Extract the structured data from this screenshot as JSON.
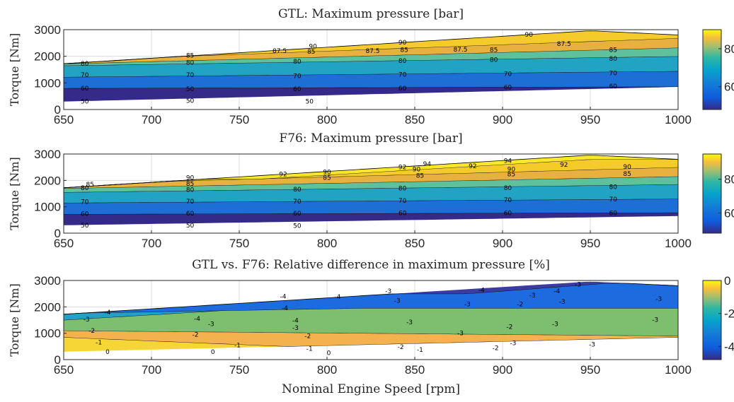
{
  "chart_data": [
    {
      "type": "contour",
      "title": "GTL: Maximum pressure [bar]",
      "ylabel": "Torque [Nm]",
      "xlim": [
        650,
        1000
      ],
      "ylim": [
        0,
        3000
      ],
      "x_ticks": [
        "650",
        "700",
        "750",
        "800",
        "850",
        "900",
        "950",
        "1000"
      ],
      "y_ticks": [
        "0",
        "1000",
        "2000",
        "3000"
      ],
      "colorbar": {
        "range": [
          48,
          90
        ],
        "ticks": [
          "60",
          "80"
        ]
      },
      "domain": {
        "lower_torque": [
          [
            650,
            300
          ],
          [
            1000,
            850
          ]
        ],
        "upper_torque": [
          [
            650,
            1720
          ],
          [
            950,
            2960
          ],
          [
            1000,
            2800
          ]
        ]
      },
      "levels": [
        {
          "value": 50,
          "label": "50",
          "color": "#352a87",
          "boundary": [
            [
              650,
              300
            ],
            [
              1000,
              850
            ]
          ]
        },
        {
          "value": 60,
          "label": "60",
          "color": "#1d6fd6",
          "boundary": [
            [
              650,
              800
            ],
            [
              1000,
              860
            ]
          ]
        },
        {
          "value": 70,
          "label": "70",
          "color": "#21a3c4",
          "boundary": [
            [
              650,
              1220
            ],
            [
              1000,
              1440
            ]
          ]
        },
        {
          "value": 80,
          "label": "80",
          "color": "#5fc09c",
          "boundary": [
            [
              650,
              1650
            ],
            [
              1000,
              2000
            ]
          ]
        },
        {
          "value": 85,
          "label": "85",
          "color": "#e8b03e",
          "boundary": [
            [
              650,
              1720
            ],
            [
              1000,
              2320
            ]
          ]
        },
        {
          "value": 87.5,
          "label": "87.5",
          "color": "#f5cb2c",
          "boundary": [
            [
              700,
              1960
            ],
            [
              1000,
              2680
            ]
          ]
        },
        {
          "value": 90,
          "label": "90",
          "color": "#f9e72a",
          "boundary": [
            [
              790,
              2400
            ],
            [
              950,
              2980
            ]
          ]
        }
      ],
      "contour_labels": [
        {
          "text": "80",
          "x": 662,
          "y": 1720
        },
        {
          "text": "85",
          "x": 722,
          "y": 2030
        },
        {
          "text": "87.5",
          "x": 773,
          "y": 2200
        },
        {
          "text": "90",
          "x": 792,
          "y": 2380
        },
        {
          "text": "85",
          "x": 791,
          "y": 2180
        },
        {
          "text": "87.5",
          "x": 826,
          "y": 2200
        },
        {
          "text": "90",
          "x": 843,
          "y": 2520
        },
        {
          "text": "85",
          "x": 844,
          "y": 2240
        },
        {
          "text": "87.5",
          "x": 876,
          "y": 2260
        },
        {
          "text": "90",
          "x": 915,
          "y": 2820
        },
        {
          "text": "87.5",
          "x": 935,
          "y": 2470
        },
        {
          "text": "85",
          "x": 895,
          "y": 2240
        },
        {
          "text": "85",
          "x": 963,
          "y": 2250
        },
        {
          "text": "80",
          "x": 722,
          "y": 1770
        },
        {
          "text": "80",
          "x": 783,
          "y": 1800
        },
        {
          "text": "80",
          "x": 843,
          "y": 1830
        },
        {
          "text": "80",
          "x": 895,
          "y": 1870
        },
        {
          "text": "80",
          "x": 963,
          "y": 1910
        },
        {
          "text": "70",
          "x": 662,
          "y": 1300
        },
        {
          "text": "70",
          "x": 722,
          "y": 1300
        },
        {
          "text": "70",
          "x": 783,
          "y": 1260
        },
        {
          "text": "70",
          "x": 843,
          "y": 1310
        },
        {
          "text": "70",
          "x": 903,
          "y": 1340
        },
        {
          "text": "70",
          "x": 963,
          "y": 1370
        },
        {
          "text": "60",
          "x": 662,
          "y": 800
        },
        {
          "text": "50",
          "x": 722,
          "y": 770
        },
        {
          "text": "60",
          "x": 783,
          "y": 770
        },
        {
          "text": "60",
          "x": 843,
          "y": 800
        },
        {
          "text": "60",
          "x": 903,
          "y": 840
        },
        {
          "text": "60",
          "x": 963,
          "y": 870
        },
        {
          "text": "50",
          "x": 662,
          "y": 300
        },
        {
          "text": "50",
          "x": 722,
          "y": 330
        },
        {
          "text": "50",
          "x": 790,
          "y": 310
        }
      ]
    },
    {
      "type": "contour",
      "title": "F76: Maximum pressure [bar]",
      "ylabel": "Torque [Nm]",
      "xlim": [
        650,
        1000
      ],
      "ylim": [
        0,
        3000
      ],
      "x_ticks": [
        "650",
        "700",
        "750",
        "800",
        "850",
        "900",
        "950",
        "1000"
      ],
      "y_ticks": [
        "0",
        "1000",
        "2000",
        "3000"
      ],
      "colorbar": {
        "range": [
          48,
          95
        ],
        "ticks": [
          "60",
          "80"
        ]
      },
      "domain": {
        "lower_torque": [
          [
            650,
            300
          ],
          [
            1000,
            650
          ]
        ],
        "upper_torque": [
          [
            650,
            1720
          ],
          [
            950,
            2960
          ],
          [
            1000,
            2800
          ]
        ]
      },
      "levels": [
        {
          "value": 50,
          "label": "50",
          "color": "#352a87",
          "boundary": [
            [
              650,
              300
            ],
            [
              1000,
              650
            ]
          ]
        },
        {
          "value": 60,
          "label": "60",
          "color": "#1d6fd6",
          "boundary": [
            [
              650,
              720
            ],
            [
              1000,
              780
            ]
          ]
        },
        {
          "value": 70,
          "label": "70",
          "color": "#21a3c4",
          "boundary": [
            [
              650,
              1150
            ],
            [
              1000,
              1300
            ]
          ]
        },
        {
          "value": 80,
          "label": "80",
          "color": "#5fc09c",
          "boundary": [
            [
              650,
              1550
            ],
            [
              1000,
              1850
            ]
          ]
        },
        {
          "value": 85,
          "label": "85",
          "color": "#e8b03e",
          "boundary": [
            [
              650,
              1700
            ],
            [
              1000,
              2150
            ]
          ]
        },
        {
          "value": 90,
          "label": "90",
          "color": "#f5cb2c",
          "boundary": [
            [
              700,
              1950
            ],
            [
              1000,
              2500
            ]
          ]
        },
        {
          "value": 92,
          "label": "92",
          "color": "#f9e72a",
          "boundary": [
            [
              760,
              2050
            ],
            [
              950,
              2800
            ]
          ]
        },
        {
          "value": 94,
          "label": "94",
          "color": "#fafa1e",
          "boundary": [
            [
              830,
              2500
            ],
            [
              950,
              2960
            ]
          ]
        }
      ],
      "contour_labels": [
        {
          "text": "85",
          "x": 665,
          "y": 1850
        },
        {
          "text": "90",
          "x": 722,
          "y": 2100
        },
        {
          "text": "92",
          "x": 775,
          "y": 2230
        },
        {
          "text": "85",
          "x": 722,
          "y": 1870
        },
        {
          "text": "90",
          "x": 800,
          "y": 2320
        },
        {
          "text": "85",
          "x": 800,
          "y": 2100
        },
        {
          "text": "92",
          "x": 843,
          "y": 2500
        },
        {
          "text": "94",
          "x": 857,
          "y": 2630
        },
        {
          "text": "90",
          "x": 851,
          "y": 2430
        },
        {
          "text": "85",
          "x": 853,
          "y": 2180
        },
        {
          "text": "92",
          "x": 883,
          "y": 2540
        },
        {
          "text": "94",
          "x": 903,
          "y": 2750
        },
        {
          "text": "90",
          "x": 905,
          "y": 2420
        },
        {
          "text": "85",
          "x": 905,
          "y": 2230
        },
        {
          "text": "92",
          "x": 935,
          "y": 2600
        },
        {
          "text": "90",
          "x": 971,
          "y": 2520
        },
        {
          "text": "85",
          "x": 971,
          "y": 2250
        },
        {
          "text": "80",
          "x": 662,
          "y": 1720
        },
        {
          "text": "80",
          "x": 722,
          "y": 1650
        },
        {
          "text": "80",
          "x": 783,
          "y": 1660
        },
        {
          "text": "80",
          "x": 843,
          "y": 1700
        },
        {
          "text": "80",
          "x": 903,
          "y": 1720
        },
        {
          "text": "80",
          "x": 963,
          "y": 1760
        },
        {
          "text": "70",
          "x": 662,
          "y": 1190
        },
        {
          "text": "70",
          "x": 722,
          "y": 1200
        },
        {
          "text": "70",
          "x": 783,
          "y": 1200
        },
        {
          "text": "70",
          "x": 843,
          "y": 1230
        },
        {
          "text": "70",
          "x": 903,
          "y": 1260
        },
        {
          "text": "70",
          "x": 963,
          "y": 1280
        },
        {
          "text": "60",
          "x": 662,
          "y": 740
        },
        {
          "text": "60",
          "x": 722,
          "y": 750
        },
        {
          "text": "60",
          "x": 783,
          "y": 750
        },
        {
          "text": "60",
          "x": 843,
          "y": 760
        },
        {
          "text": "60",
          "x": 903,
          "y": 760
        },
        {
          "text": "60",
          "x": 963,
          "y": 760
        },
        {
          "text": "50",
          "x": 662,
          "y": 300
        },
        {
          "text": "50",
          "x": 722,
          "y": 300
        },
        {
          "text": "50",
          "x": 783,
          "y": 280
        }
      ]
    },
    {
      "type": "contour",
      "title": "GTL vs. F76: Relative difference in maximum pressure [%]",
      "xlabel": "Nominal Engine Speed [rpm]",
      "ylabel": "Torque [Nm]",
      "xlim": [
        650,
        1000
      ],
      "ylim": [
        0,
        3000
      ],
      "x_ticks": [
        "650",
        "700",
        "750",
        "800",
        "850",
        "900",
        "950",
        "1000"
      ],
      "y_ticks": [
        "0",
        "1000",
        "2000",
        "3000"
      ],
      "colorbar": {
        "range": [
          -4.8,
          0
        ],
        "ticks": [
          "0",
          "-2",
          "-4"
        ]
      },
      "domain": {
        "lower_torque": [
          [
            650,
            300
          ],
          [
            1000,
            850
          ]
        ],
        "upper_torque": [
          [
            650,
            1720
          ],
          [
            950,
            2960
          ],
          [
            1000,
            2800
          ]
        ]
      },
      "levels": [
        {
          "value": 0,
          "label": "0",
          "color": "#f6d636",
          "boundary": [
            [
              650,
              300
            ],
            [
              800,
              280
            ]
          ]
        },
        {
          "value": -1,
          "label": "-1",
          "color": "#f3b24d",
          "boundary": [
            [
              650,
              850
            ],
            [
              850,
              300
            ]
          ]
        },
        {
          "value": -2,
          "label": "-2",
          "color": "#7dbf6e",
          "boundary": [
            [
              650,
              1100
            ],
            [
              1000,
              900
            ]
          ]
        },
        {
          "value": -3,
          "label": "-3",
          "color": "#22a1c6",
          "boundary": [
            [
              650,
              1500
            ],
            [
              1000,
              2900
            ]
          ]
        },
        {
          "value": -4,
          "label": "-4",
          "color": "#1e6be0",
          "boundary": [
            [
              670,
              1780
            ],
            [
              820,
              1950
            ]
          ]
        },
        {
          "value": -4.5,
          "label": "-4",
          "color": "#3c3ba0",
          "boundary": [
            [
              880,
              2500
            ],
            [
              960,
              2900
            ]
          ]
        }
      ],
      "contour_labels": [
        {
          "text": "-4",
          "x": 675,
          "y": 1800
        },
        {
          "text": "-3",
          "x": 663,
          "y": 1530
        },
        {
          "text": "-2",
          "x": 666,
          "y": 1100
        },
        {
          "text": "-1",
          "x": 670,
          "y": 660
        },
        {
          "text": "0",
          "x": 675,
          "y": 300
        },
        {
          "text": "-4",
          "x": 726,
          "y": 1560
        },
        {
          "text": "-3",
          "x": 734,
          "y": 1350
        },
        {
          "text": "-2",
          "x": 725,
          "y": 950
        },
        {
          "text": "-1",
          "x": 749,
          "y": 550
        },
        {
          "text": "0",
          "x": 735,
          "y": 300
        },
        {
          "text": "-4",
          "x": 775,
          "y": 2400
        },
        {
          "text": "-4",
          "x": 776,
          "y": 1960
        },
        {
          "text": "-4",
          "x": 782,
          "y": 1480
        },
        {
          "text": "-3",
          "x": 782,
          "y": 1200
        },
        {
          "text": "-2",
          "x": 789,
          "y": 900
        },
        {
          "text": "-1",
          "x": 790,
          "y": 420
        },
        {
          "text": "0",
          "x": 801,
          "y": 260
        },
        {
          "text": "-4",
          "x": 806,
          "y": 2380
        },
        {
          "text": "-3",
          "x": 835,
          "y": 2600
        },
        {
          "text": "-3",
          "x": 840,
          "y": 2230
        },
        {
          "text": "-3",
          "x": 847,
          "y": 1420
        },
        {
          "text": "-2",
          "x": 842,
          "y": 480
        },
        {
          "text": "-1",
          "x": 853,
          "y": 380
        },
        {
          "text": "-4",
          "x": 888,
          "y": 2640
        },
        {
          "text": "-3",
          "x": 880,
          "y": 2100
        },
        {
          "text": "-3",
          "x": 876,
          "y": 1000
        },
        {
          "text": "-2",
          "x": 904,
          "y": 1250
        },
        {
          "text": "-3",
          "x": 906,
          "y": 630
        },
        {
          "text": "-2",
          "x": 896,
          "y": 440
        },
        {
          "text": "-4",
          "x": 931,
          "y": 2600
        },
        {
          "text": "-3",
          "x": 934,
          "y": 2200
        },
        {
          "text": "-3",
          "x": 917,
          "y": 2440
        },
        {
          "text": "-2",
          "x": 910,
          "y": 2100
        },
        {
          "text": "-3",
          "x": 943,
          "y": 2850
        },
        {
          "text": "-3",
          "x": 930,
          "y": 1350
        },
        {
          "text": "-3",
          "x": 951,
          "y": 580
        },
        {
          "text": "-3",
          "x": 989,
          "y": 2300
        },
        {
          "text": "-3",
          "x": 987,
          "y": 1520
        }
      ]
    }
  ]
}
